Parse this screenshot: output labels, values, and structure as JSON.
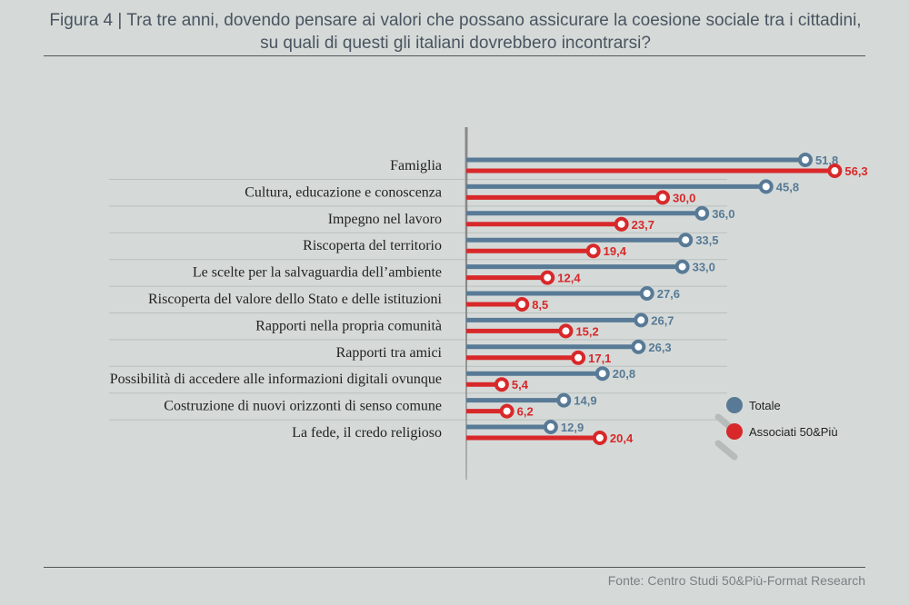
{
  "figure": {
    "title": "Figura 4 |  Tra tre anni, dovendo pensare ai valori che possano assicurare la coesione sociale tra i cittadini, su quali di questi gli italiani dovrebbero incontrarsi?",
    "source": "Fonte: Centro Studi 50&Più-Format Research"
  },
  "colors": {
    "totale": "#587a96",
    "associati": "#d8282a",
    "separator": "#b9bfbd",
    "background": "#d5dad8"
  },
  "chart_data": {
    "type": "bar",
    "orientation": "horizontal",
    "title": "Tra tre anni, dovendo pensare ai valori che possano assicurare la coesione sociale tra i cittadini, su quali di questi gli italiani dovrebbero incontrarsi?",
    "categories": [
      "Famiglia",
      "Cultura, educazione e conoscenza",
      "Impegno nel lavoro",
      "Riscoperta del territorio",
      "Le scelte per la salvaguardia dell’ambiente",
      "Riscoperta del valore dello Stato e delle istituzioni",
      "Rapporti nella propria comunità",
      "Rapporti tra amici",
      "Possibilità di accedere alle informazioni digitali ovunque",
      "Costruzione di nuovi orizzonti di senso comune",
      "La fede, il credo religioso"
    ],
    "series": [
      {
        "name": "Totale",
        "values": [
          51.8,
          45.8,
          36.0,
          33.5,
          33.0,
          27.6,
          26.7,
          26.3,
          20.8,
          14.9,
          12.9
        ],
        "labels": [
          "51,8",
          "45,8",
          "36,0",
          "33,5",
          "33,0",
          "27,6",
          "26,7",
          "26,3",
          "20,8",
          "14,9",
          "12,9"
        ]
      },
      {
        "name": "Associati 50&Più",
        "values": [
          56.3,
          30.0,
          23.7,
          19.4,
          12.4,
          8.5,
          15.2,
          17.1,
          5.4,
          6.2,
          20.4
        ],
        "labels": [
          "56,3",
          "30,0",
          "23,7",
          "19,4",
          "12,4",
          "8,5",
          "15,2",
          "17,1",
          "5,4",
          "6,2",
          "20,4"
        ]
      }
    ],
    "xlim": [
      0,
      60
    ],
    "grid": false,
    "legend_position": "bottom-right"
  }
}
